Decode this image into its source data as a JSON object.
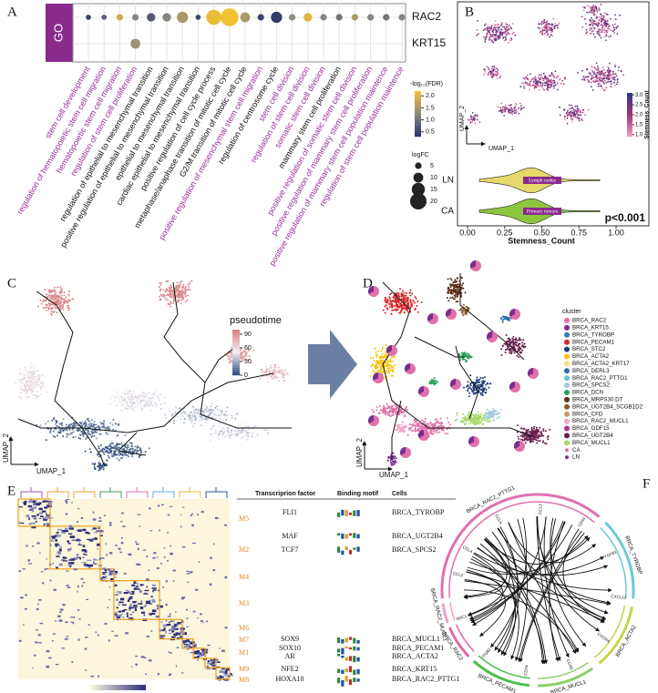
{
  "chart_data": [
    {
      "type": "dot",
      "header": "GO",
      "categories": [
        "stem cell development",
        "regulation of hematopoietic stem cell migration",
        "hematopoietic stem cell migration",
        "regulation of stem cell proliferation",
        "regulation of epithelial to mesenchymal transition",
        "positive regulation of epithelial to mesenchymal transition",
        "epithelial to mesenchymal transition",
        "cardiac epithelial to mesenchymal transition",
        "positive regulation of cell cycle process",
        "metaphase/anaphase transition of mitotic cell cycle",
        "G2/M transition of mitotic cell cycle",
        "positive regulation of mesenchymal stem cell migration",
        "regulation of centrosome cycle",
        "stem cell division",
        "regulation of stem cell division",
        "somatic stem cell division",
        "mammary stem cell proliferation",
        "positive regulation of somatic stem cell division",
        "positive regulation of mammary stem cell proliferation",
        "positive regulation of mammary stem cell population maintence",
        "regulation of stem cell population maintence"
      ],
      "label_colors": [
        "#9b2e9b",
        "#9b2e9b",
        "#9b2e9b",
        "#9b2e9b",
        "#111111",
        "#111111",
        "#111111",
        "#111111",
        "#111111",
        "#111111",
        "#111111",
        "#9b2e9b",
        "#111111",
        "#9b2e9b",
        "#9b2e9b",
        "#9b2e9b",
        "#111111",
        "#9b2e9b",
        "#9b2e9b",
        "#9b2e9b",
        "#9b2e9b"
      ],
      "series": [
        {
          "name": "RAC2",
          "values": [
            3,
            3,
            5,
            5,
            8,
            8,
            12,
            3,
            18,
            22,
            10,
            5,
            12,
            5,
            8,
            5,
            5,
            5,
            5,
            5,
            5
          ],
          "fdr": [
            0.5,
            0.8,
            1.8,
            1.2,
            0.7,
            1.2,
            1.5,
            0.5,
            2.1,
            2.2,
            1.5,
            0.5,
            0.4,
            1.3,
            2.0,
            1.2,
            1.0,
            1.5,
            1.2,
            1.0,
            1.2
          ]
        },
        {
          "name": "KRT15",
          "values": [
            null,
            null,
            null,
            10,
            null,
            null,
            null,
            null,
            null,
            null,
            null,
            null,
            null,
            null,
            null,
            null,
            null,
            null,
            null,
            null,
            null
          ],
          "fdr": [
            null,
            null,
            null,
            1.4,
            null,
            null,
            null,
            null,
            null,
            null,
            null,
            null,
            null,
            null,
            null,
            null,
            null,
            null,
            null,
            null,
            null
          ]
        }
      ],
      "colormap": [
        "#27336b",
        "#8c8a7e",
        "#f2c230"
      ],
      "clim": [
        0.3,
        2.2
      ],
      "color_legend": {
        "title": "-log₁₀(FDR)",
        "ticks": [
          {
            "value": 2,
            "label": "2.0"
          },
          {
            "value": 1.5,
            "label": "1.5"
          },
          {
            "value": 1,
            "label": "1.0"
          },
          {
            "value": 0.5,
            "label": "0.5"
          }
        ]
      },
      "size_legend": {
        "title": "logFC",
        "ticks": [
          5,
          10,
          15,
          20
        ]
      }
    },
    {
      "type": "violin",
      "categories": [
        "LN",
        "CA"
      ],
      "inner_labels": [
        "Lymph nodes",
        "Primary tumors"
      ],
      "colors": [
        "#e6d86a",
        "#8cc63f"
      ],
      "xlabel": "Stemness_Count",
      "xlim": [
        0,
        1
      ],
      "xticks": [
        {
          "value": 0,
          "label": "0.00"
        },
        {
          "value": 0.25,
          "label": "0.25"
        },
        {
          "value": 0.5,
          "label": "0.50"
        },
        {
          "value": 0.75,
          "label": "0.75"
        },
        {
          "value": 1,
          "label": "1.00"
        }
      ],
      "annotation": "p<0.001"
    }
  ],
  "figure": {
    "panel_labels": [
      "A",
      "B",
      "C",
      "D",
      "E",
      "F"
    ],
    "panel_b": {
      "xlabel": "UMAP_1",
      "ylabel": "UMAP_2",
      "colorbar_title": "Stemness_Count",
      "colorbar_colors": [
        "#f4a0c0",
        "#a0307a",
        "#2e3a8c"
      ],
      "colorbar_lim": [
        0.9,
        3.1
      ],
      "colorbar_ticks": [
        {
          "value": 3,
          "label": "3.0"
        },
        {
          "value": 2.5,
          "label": "2.5"
        },
        {
          "value": 2,
          "label": "2.0"
        },
        {
          "value": 1.5,
          "label": "1.5"
        },
        {
          "value": 1,
          "label": "1.0"
        }
      ]
    },
    "panel_c": {
      "legend_title": "pseudotime",
      "colorbar_lim": [
        0,
        100
      ],
      "colorbar_colors": [
        "#2a4a7a",
        "#f0f0f5",
        "#d98080"
      ],
      "ticks": [
        90,
        60,
        30,
        0
      ],
      "xlabel": "UMAP_1",
      "ylabel": "UMAP_2"
    },
    "panel_d": {
      "legend_title": "cluster",
      "xlabel": "UMAP_1",
      "ylabel": "UMAP_2",
      "clusters": [
        {
          "name": "BRCA_RAC2",
          "color": "#e070a8"
        },
        {
          "name": "BRCA_KRT15",
          "color": "#7b2d8e"
        },
        {
          "name": "BRCA_TYROBP",
          "color": "#3a78b8"
        },
        {
          "name": "BRCA_PECAM1",
          "color": "#d62728"
        },
        {
          "name": "BRCA_STC2",
          "color": "#1f3a78"
        },
        {
          "name": "BRCA_ACTA2",
          "color": "#f5c518"
        },
        {
          "name": "BRCA_ACTA2_KRT17",
          "color": "#f3e07a"
        },
        {
          "name": "BRCA_DERL3",
          "color": "#2c6fb0"
        },
        {
          "name": "BRCA_RAC2_PTTG1",
          "color": "#5bc8d8"
        },
        {
          "name": "BRCA_SPCS2",
          "color": "#9ecae1"
        },
        {
          "name": "BRCA_DCN",
          "color": "#2ca25f"
        },
        {
          "name": "BRCA_MRPS30.DT",
          "color": "#5a2a10"
        },
        {
          "name": "BRCA_UGT2B4_SCGB1D2",
          "color": "#8c5a2b"
        },
        {
          "name": "BRCA_CFD",
          "color": "#c49a6c"
        },
        {
          "name": "BRCA_RAC2_MUCL1",
          "color": "#f4a6c8"
        },
        {
          "name": "BRCA_GDF15",
          "color": "#b0308e"
        },
        {
          "name": "BRCA_UGT2B4",
          "color": "#6a1f4d"
        },
        {
          "name": "BRCA_MUCL1",
          "color": "#a6d96a"
        }
      ],
      "origins": [
        {
          "name": "CA",
          "color": "#e070a8"
        },
        {
          "name": "LN",
          "color": "#7b2d8e"
        }
      ]
    },
    "panel_e": {
      "headers": [
        "Transcriprion factor",
        "Binding motif",
        "Cells"
      ],
      "modules": [
        "M5",
        "M2",
        "M4",
        "M3",
        "M6",
        "M7",
        "M1",
        "M9",
        "M8"
      ],
      "rows": [
        {
          "factor": "FLI1",
          "cell": "BRCA_TYROBP"
        },
        {
          "factor": "MAF",
          "cell": "BRCA_UGT2B4"
        },
        {
          "factor": "TCF7",
          "cell": "BRCA_SPCS2"
        },
        {
          "factor": "SOX9",
          "cell": "BRCA_MUCL1"
        },
        {
          "factor": "SOX10",
          "cell": "BRCA_PECAM1"
        },
        {
          "factor": "AR",
          "cell": "BRCA_ACTA2"
        },
        {
          "factor": "NFE2",
          "cell": "BRCA_KRT15"
        },
        {
          "factor": "HOXA10",
          "cell": "BRCA_RAC2_PTTG1"
        }
      ]
    },
    "panel_f": {
      "segments": [
        {
          "name": "BRCA_RAC2_PTTG1",
          "color": "#e070b0"
        },
        {
          "name": "BRCA_TYROBP",
          "color": "#6ccbd3"
        },
        {
          "name": "BRCA_ACTA2",
          "color": "#c8d44a"
        },
        {
          "name": "BRCA_MUCL1",
          "color": "#8fd06a"
        },
        {
          "name": "BRCA_PECAM1",
          "color": "#4bbf4b"
        },
        {
          "name": "BRCA_RAC2",
          "color": "#e06aa8"
        },
        {
          "name": "BRCA_RAC2_MUCL1",
          "color": "#f2a0c8"
        }
      ],
      "genes": [
        "CCL4",
        "CCL5",
        "CCL3",
        "CD44",
        "TGFB1",
        "CXCL12",
        "CXCR4",
        "CCR5",
        "CD74",
        "ITGB1",
        "SDC1",
        "CCL2"
      ]
    }
  }
}
